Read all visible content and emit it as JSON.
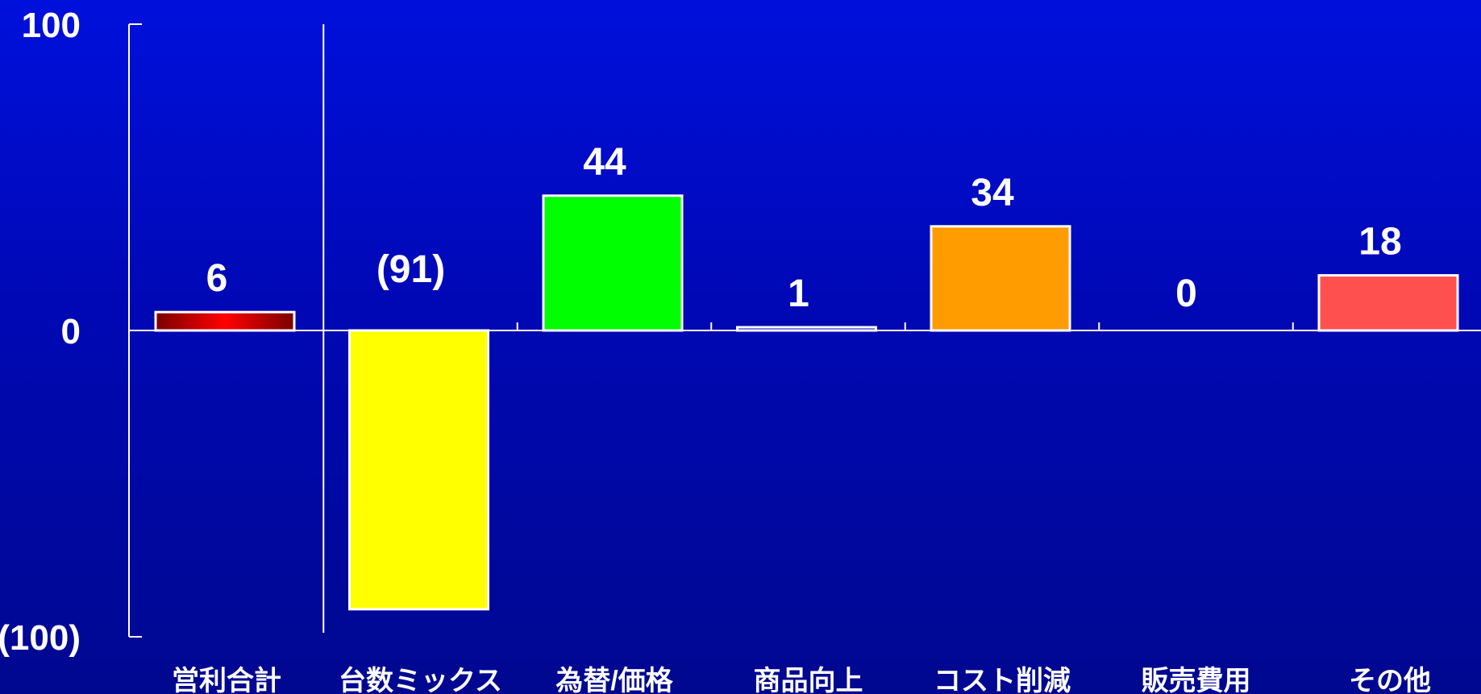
{
  "chart_data": {
    "type": "bar",
    "categories": [
      "営利合計",
      "台数ミックス",
      "為替/価格",
      "商品向上",
      "コスト削減",
      "販売費用",
      "その他"
    ],
    "values": [
      6,
      -91,
      44,
      1,
      34,
      0,
      18
    ],
    "value_labels": [
      "6",
      "(91)",
      "44",
      "1",
      "34",
      "0",
      "18"
    ],
    "ylim": [
      -100,
      100
    ],
    "y_ticks": [
      {
        "value": 100,
        "label": "100"
      },
      {
        "value": 0,
        "label": "0"
      },
      {
        "value": -100,
        "label": "(100)"
      }
    ],
    "title": "",
    "xlabel": "",
    "ylabel": "",
    "colors": [
      "gradient-red",
      "#ffff00",
      "#00ff00",
      "#0008b4",
      "#ff9c00",
      "#0008b4",
      "#ff5050"
    ],
    "bar_outline": "#ffffff",
    "axis_color": "#ffffff",
    "background_top": "#0010dc",
    "background_bottom": "#000890",
    "grid": false,
    "legend": "none"
  }
}
